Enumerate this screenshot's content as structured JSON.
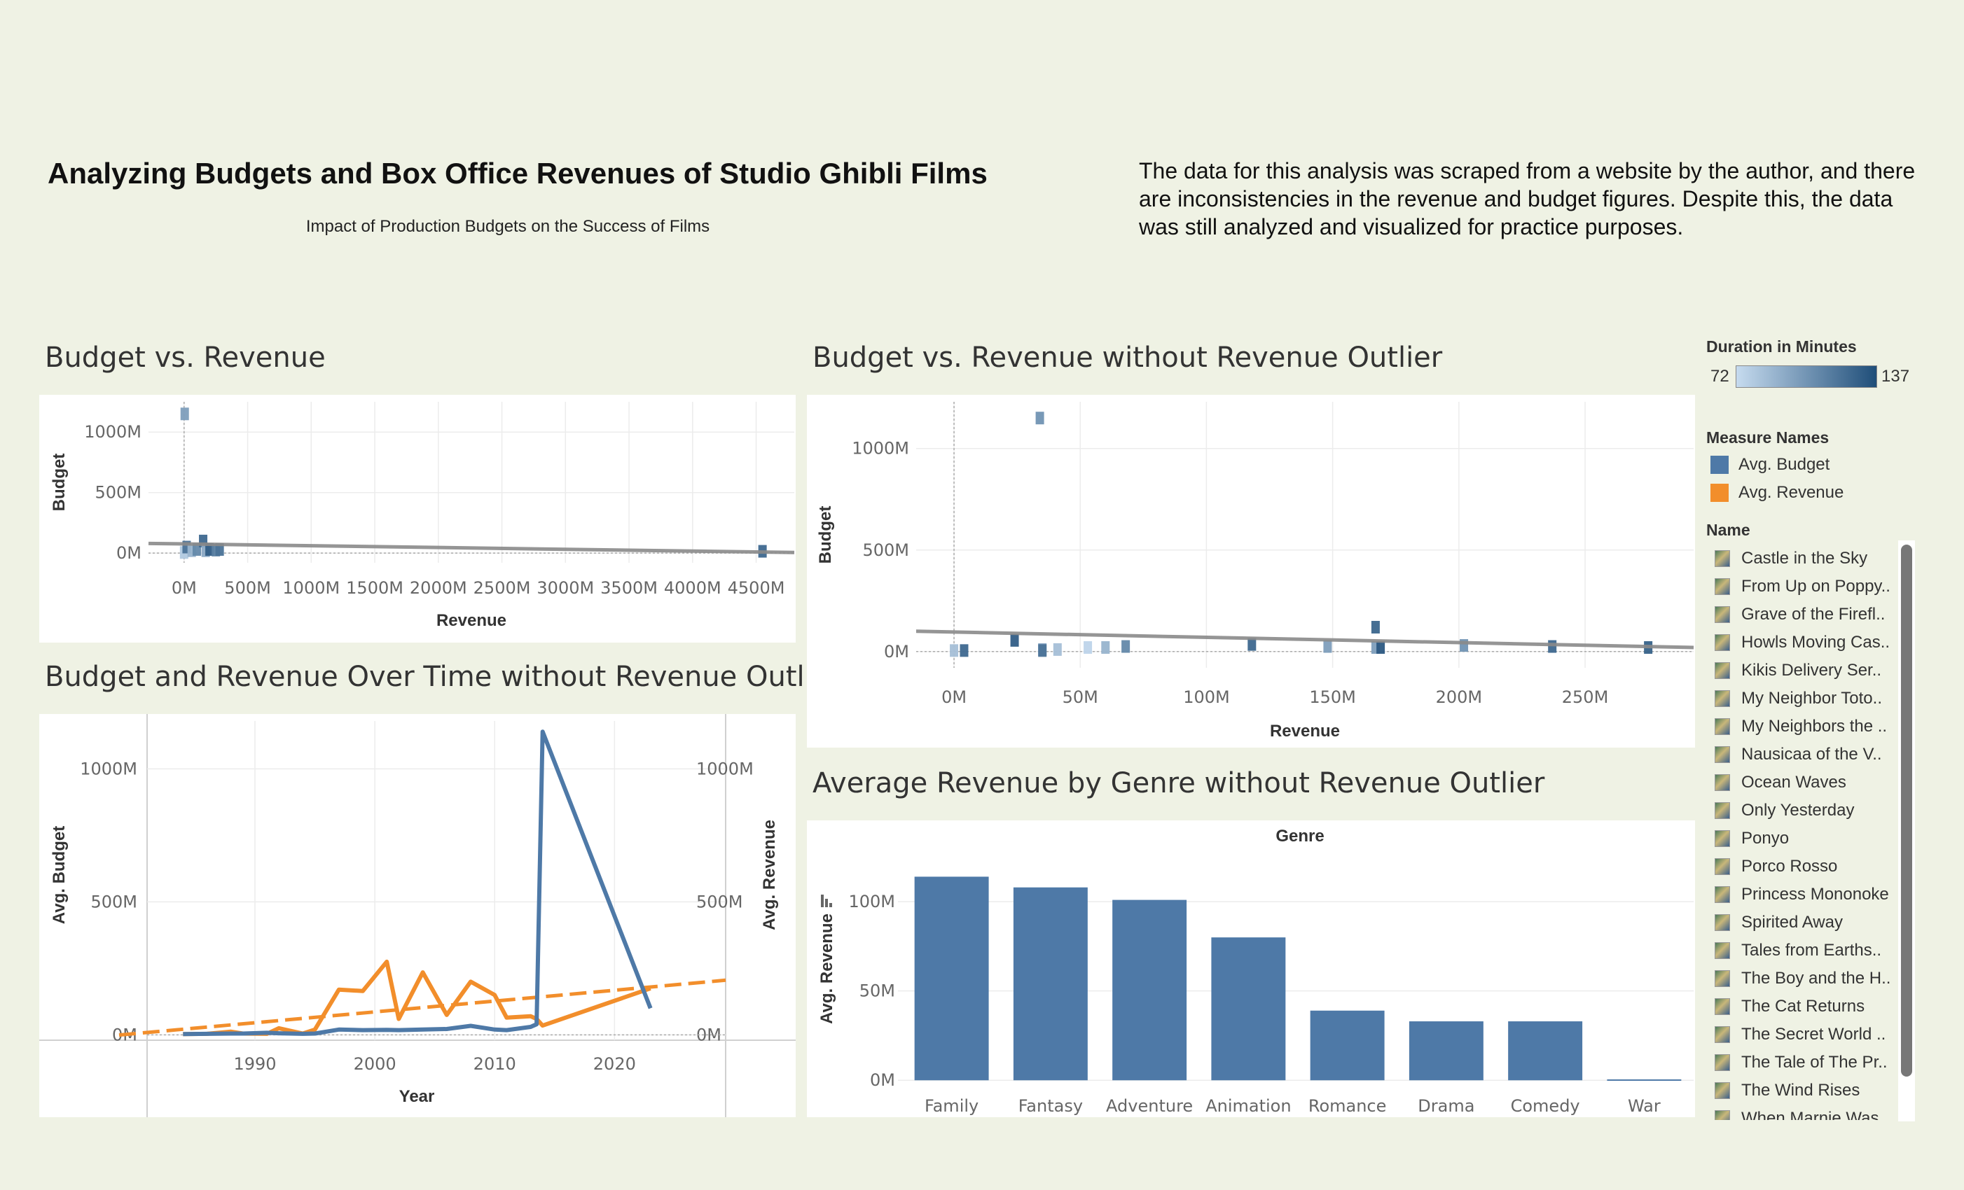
{
  "header": {
    "title": "Analyzing Budgets and Box Office Revenues of Studio Ghibli Films",
    "subtitle": "Impact of Production Budgets on the Success of Films",
    "note": "The data for this analysis was scraped from a website by the author, and there are inconsistencies in the revenue and budget figures. Despite this, the data was still analyzed and visualized for practice purposes."
  },
  "sheets": {
    "budget_vs_revenue": "Budget vs. Revenue",
    "budget_vs_revenue_no_outlier": "Budget vs. Revenue without Revenue Outlier",
    "over_time": "Budget and Revenue Over Time without Revenue Outlier",
    "by_genre": "Average Revenue by Genre without Revenue Outlier"
  },
  "legend": {
    "duration_title": "Duration in Minutes",
    "duration_min": "72",
    "duration_max": "137",
    "duration_color_low": "#c6dbef",
    "duration_color_high": "#1f4e79",
    "measure_title": "Measure Names",
    "measures": [
      {
        "label": "Avg. Budget",
        "color": "#4e79a7"
      },
      {
        "label": "Avg. Revenue",
        "color": "#f28e2b"
      }
    ],
    "name_title": "Name",
    "names": [
      "Castle in the Sky",
      "From Up on Poppy..",
      "Grave of the Firefl..",
      "Howls Moving Cas..",
      "Kikis Delivery Ser..",
      "My Neighbor Toto..",
      "My Neighbors the ..",
      "Nausicaa of the V..",
      "Ocean Waves",
      "Only Yesterday",
      "Ponyo",
      "Porco Rosso",
      "Princess Mononoke",
      "Spirited Away",
      "Tales from Earths..",
      "The Boy and the H..",
      "The Cat Returns",
      "The Secret World ..",
      "The Tale of The Pr..",
      "The Wind Rises",
      "When Marnie Was.."
    ]
  },
  "chart_data": [
    {
      "type": "scatter",
      "title": "Budget vs. Revenue",
      "xlabel": "Revenue",
      "ylabel": "Budget",
      "xticks": [
        "0M",
        "500M",
        "1000M",
        "1500M",
        "2000M",
        "2500M",
        "3000M",
        "3500M",
        "4000M",
        "4500M"
      ],
      "yticks": [
        "0M",
        "500M",
        "1000M"
      ],
      "xlim": [
        -280,
        4800
      ],
      "ylim": [
        -80,
        1250
      ],
      "trend": [
        [
          -280,
          80
        ],
        [
          4800,
          5
        ]
      ],
      "points": [
        {
          "x": 5,
          "y": 1150,
          "d": 100
        },
        {
          "x": 0,
          "y": 5,
          "d": 80
        },
        {
          "x": 20,
          "y": 50,
          "d": 120
        },
        {
          "x": 60,
          "y": 20,
          "d": 90
        },
        {
          "x": 100,
          "y": 30,
          "d": 110
        },
        {
          "x": 150,
          "y": 100,
          "d": 125
        },
        {
          "x": 170,
          "y": 20,
          "d": 95
        },
        {
          "x": 200,
          "y": 30,
          "d": 130
        },
        {
          "x": 250,
          "y": 25,
          "d": 115
        },
        {
          "x": 280,
          "y": 30,
          "d": 120
        },
        {
          "x": 4550,
          "y": 15,
          "d": 125
        }
      ]
    },
    {
      "type": "scatter",
      "title": "Budget vs. Revenue without Revenue Outlier",
      "xlabel": "Revenue",
      "ylabel": "Budget",
      "xticks": [
        "0M",
        "50M",
        "100M",
        "150M",
        "200M",
        "250M"
      ],
      "yticks": [
        "0M",
        "500M",
        "1000M"
      ],
      "xlim": [
        -15,
        293
      ],
      "ylim": [
        -80,
        1230
      ],
      "trend": [
        [
          -15,
          100
        ],
        [
          293,
          20
        ]
      ],
      "points": [
        {
          "x": 0,
          "y": 5,
          "d": 85
        },
        {
          "x": 4,
          "y": 5,
          "d": 125
        },
        {
          "x": 24,
          "y": 55,
          "d": 130
        },
        {
          "x": 34,
          "y": 1150,
          "d": 105
        },
        {
          "x": 35,
          "y": 10,
          "d": 95
        },
        {
          "x": 35,
          "y": 5,
          "d": 120
        },
        {
          "x": 41,
          "y": 10,
          "d": 85
        },
        {
          "x": 53,
          "y": 20,
          "d": 75
        },
        {
          "x": 60,
          "y": 20,
          "d": 90
        },
        {
          "x": 68,
          "y": 25,
          "d": 110
        },
        {
          "x": 118,
          "y": 35,
          "d": 125
        },
        {
          "x": 148,
          "y": 25,
          "d": 100
        },
        {
          "x": 167,
          "y": 120,
          "d": 126
        },
        {
          "x": 167,
          "y": 20,
          "d": 100
        },
        {
          "x": 169,
          "y": 20,
          "d": 132
        },
        {
          "x": 202,
          "y": 30,
          "d": 105
        },
        {
          "x": 237,
          "y": 25,
          "d": 125
        },
        {
          "x": 275,
          "y": 20,
          "d": 128
        }
      ]
    },
    {
      "type": "line",
      "title": "Budget and Revenue Over Time without Revenue Outlier",
      "xlabel": "Year",
      "ylabel": "Avg. Budget",
      "ylabel2": "Avg. Revenue",
      "xticks": [
        "1990",
        "2000",
        "2010",
        "2020"
      ],
      "yticks": [
        "0M",
        "500M",
        "1000M"
      ],
      "xlim": [
        1981,
        2026
      ],
      "ylim": [
        -20,
        1180
      ],
      "series": [
        {
          "name": "Avg. Budget",
          "color": "#4e79a7",
          "x": [
            1984,
            1986,
            1988,
            1989,
            1991,
            1992,
            1994,
            1995,
            1997,
            1999,
            2001,
            2002,
            2004,
            2006,
            2008,
            2010,
            2011,
            2013,
            2013.5,
            2014,
            2023
          ],
          "y": [
            3,
            4,
            5,
            5,
            8,
            6,
            4,
            5,
            20,
            18,
            19,
            18,
            20,
            22,
            34,
            20,
            18,
            30,
            40,
            1140,
            100
          ]
        },
        {
          "name": "Avg. Revenue",
          "color": "#f28e2b",
          "x": [
            1984,
            1986,
            1988,
            1989,
            1991,
            1992,
            1994,
            1995,
            1997,
            1999,
            2001,
            2002,
            2004,
            2006,
            2008,
            2010,
            2011,
            2013,
            2013.5,
            2014,
            2023
          ],
          "y": [
            3,
            4,
            12,
            5,
            4,
            25,
            5,
            20,
            170,
            165,
            275,
            60,
            235,
            75,
            200,
            150,
            65,
            70,
            60,
            35,
            175
          ]
        }
      ],
      "trend_revenue": [
        [
          1981,
          10
        ],
        [
          2026,
          195
        ]
      ]
    },
    {
      "type": "bar",
      "title": "Average Revenue by Genre without Revenue Outlier",
      "xlabel": "Genre",
      "ylabel": "Avg. Revenue",
      "categories": [
        "Family",
        "Fantasy",
        "Adventure",
        "Animation",
        "Romance",
        "Drama",
        "Comedy",
        "War"
      ],
      "values": [
        114,
        108,
        101,
        80,
        39,
        33,
        33,
        0.5
      ],
      "yticks": [
        "0M",
        "50M",
        "100M"
      ],
      "ylim": [
        -5,
        122
      ],
      "color": "#4e79a7"
    }
  ]
}
